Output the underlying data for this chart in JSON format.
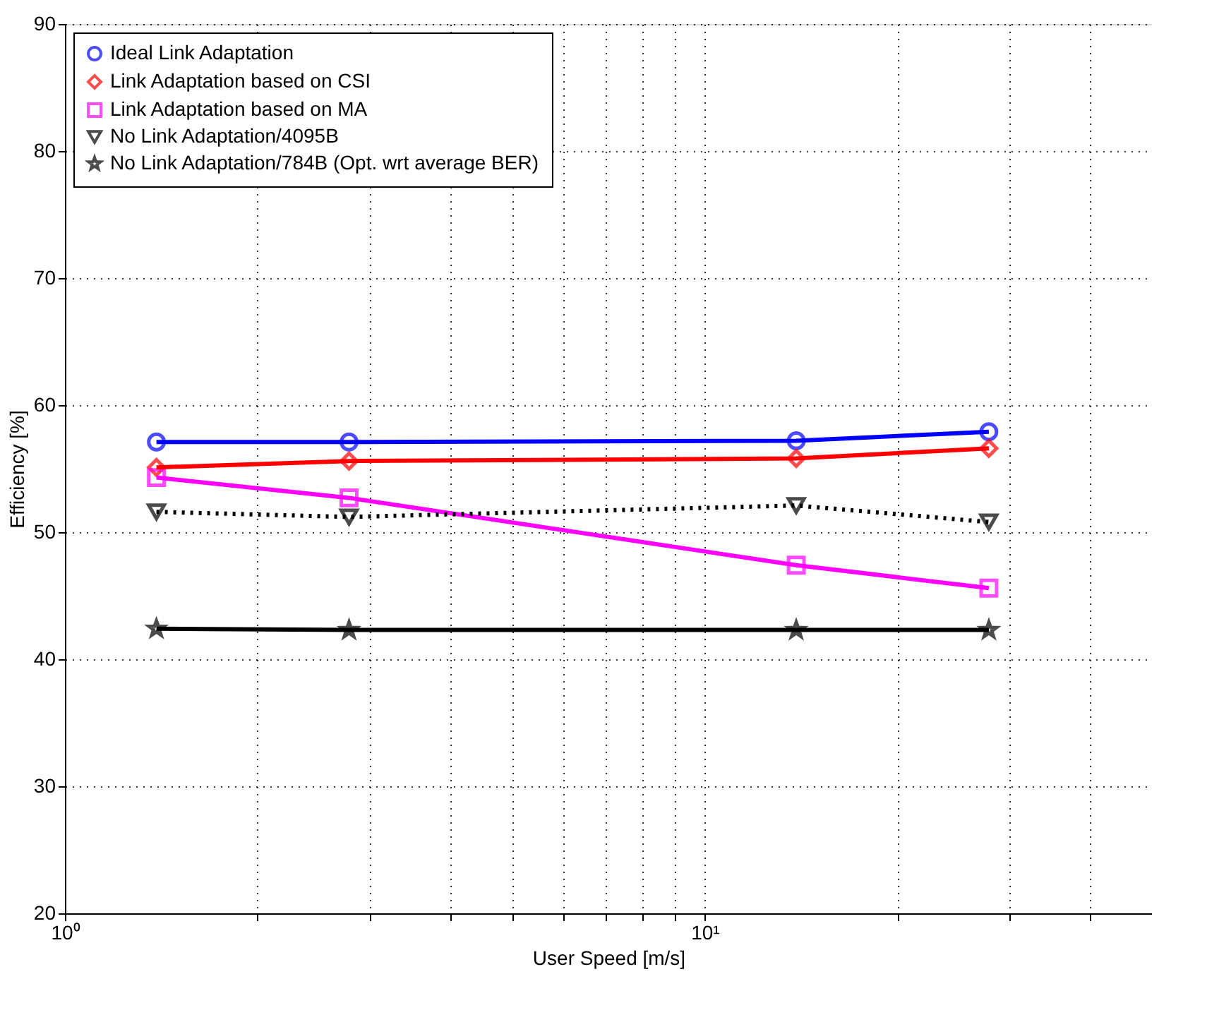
{
  "chart_data": {
    "type": "line",
    "xlabel": "User Speed [m/s]",
    "ylabel": "Efficiency [%]",
    "log": "x",
    "xlim": [
      1,
      50
    ],
    "xticks": [
      {
        "value": 1,
        "label": "10⁰"
      },
      {
        "value": 2,
        "label": null
      },
      {
        "value": 3,
        "label": null
      },
      {
        "value": 4,
        "label": null
      },
      {
        "value": 5,
        "label": null
      },
      {
        "value": 6,
        "label": null
      },
      {
        "value": 7,
        "label": null
      },
      {
        "value": 8,
        "label": null
      },
      {
        "value": 9,
        "label": null
      },
      {
        "value": 10,
        "label": "10¹"
      },
      {
        "value": 20,
        "label": null
      },
      {
        "value": 30,
        "label": null
      },
      {
        "value": 40,
        "label": null
      }
    ],
    "ylim": [
      20,
      90
    ],
    "yticks": [
      20,
      30,
      40,
      50,
      60,
      70,
      80,
      90
    ],
    "grid": true,
    "legend": "top left",
    "x": [
      1.39,
      2.78,
      13.9,
      27.8
    ],
    "series": [
      {
        "name": "Ideal Link Adaptation",
        "color": "#0000ff",
        "marker": "circle",
        "line_style": "solid",
        "values": [
          57.1,
          57.1,
          57.2,
          57.9
        ]
      },
      {
        "name": "Link Adaptation based on CSI",
        "color": "#ff0000",
        "marker": "diamond",
        "line_style": "solid",
        "values": [
          55.1,
          55.6,
          55.8,
          56.6
        ]
      },
      {
        "name": "Link Adaptation based on MA",
        "color": "#ff00ff",
        "marker": "square",
        "line_style": "solid",
        "values": [
          54.3,
          52.7,
          47.4,
          45.6
        ]
      },
      {
        "name": "No Link Adaptation/4095B",
        "color": "#000000",
        "marker": "triangle",
        "line_style": "dotted",
        "values": [
          51.6,
          51.2,
          52.1,
          50.8
        ]
      },
      {
        "name": "No Link Adaptation/784B (Opt. wrt average BER)",
        "color": "#000000",
        "marker": "star",
        "line_style": "solid",
        "values": [
          42.4,
          42.3,
          42.3,
          42.3
        ]
      }
    ]
  }
}
